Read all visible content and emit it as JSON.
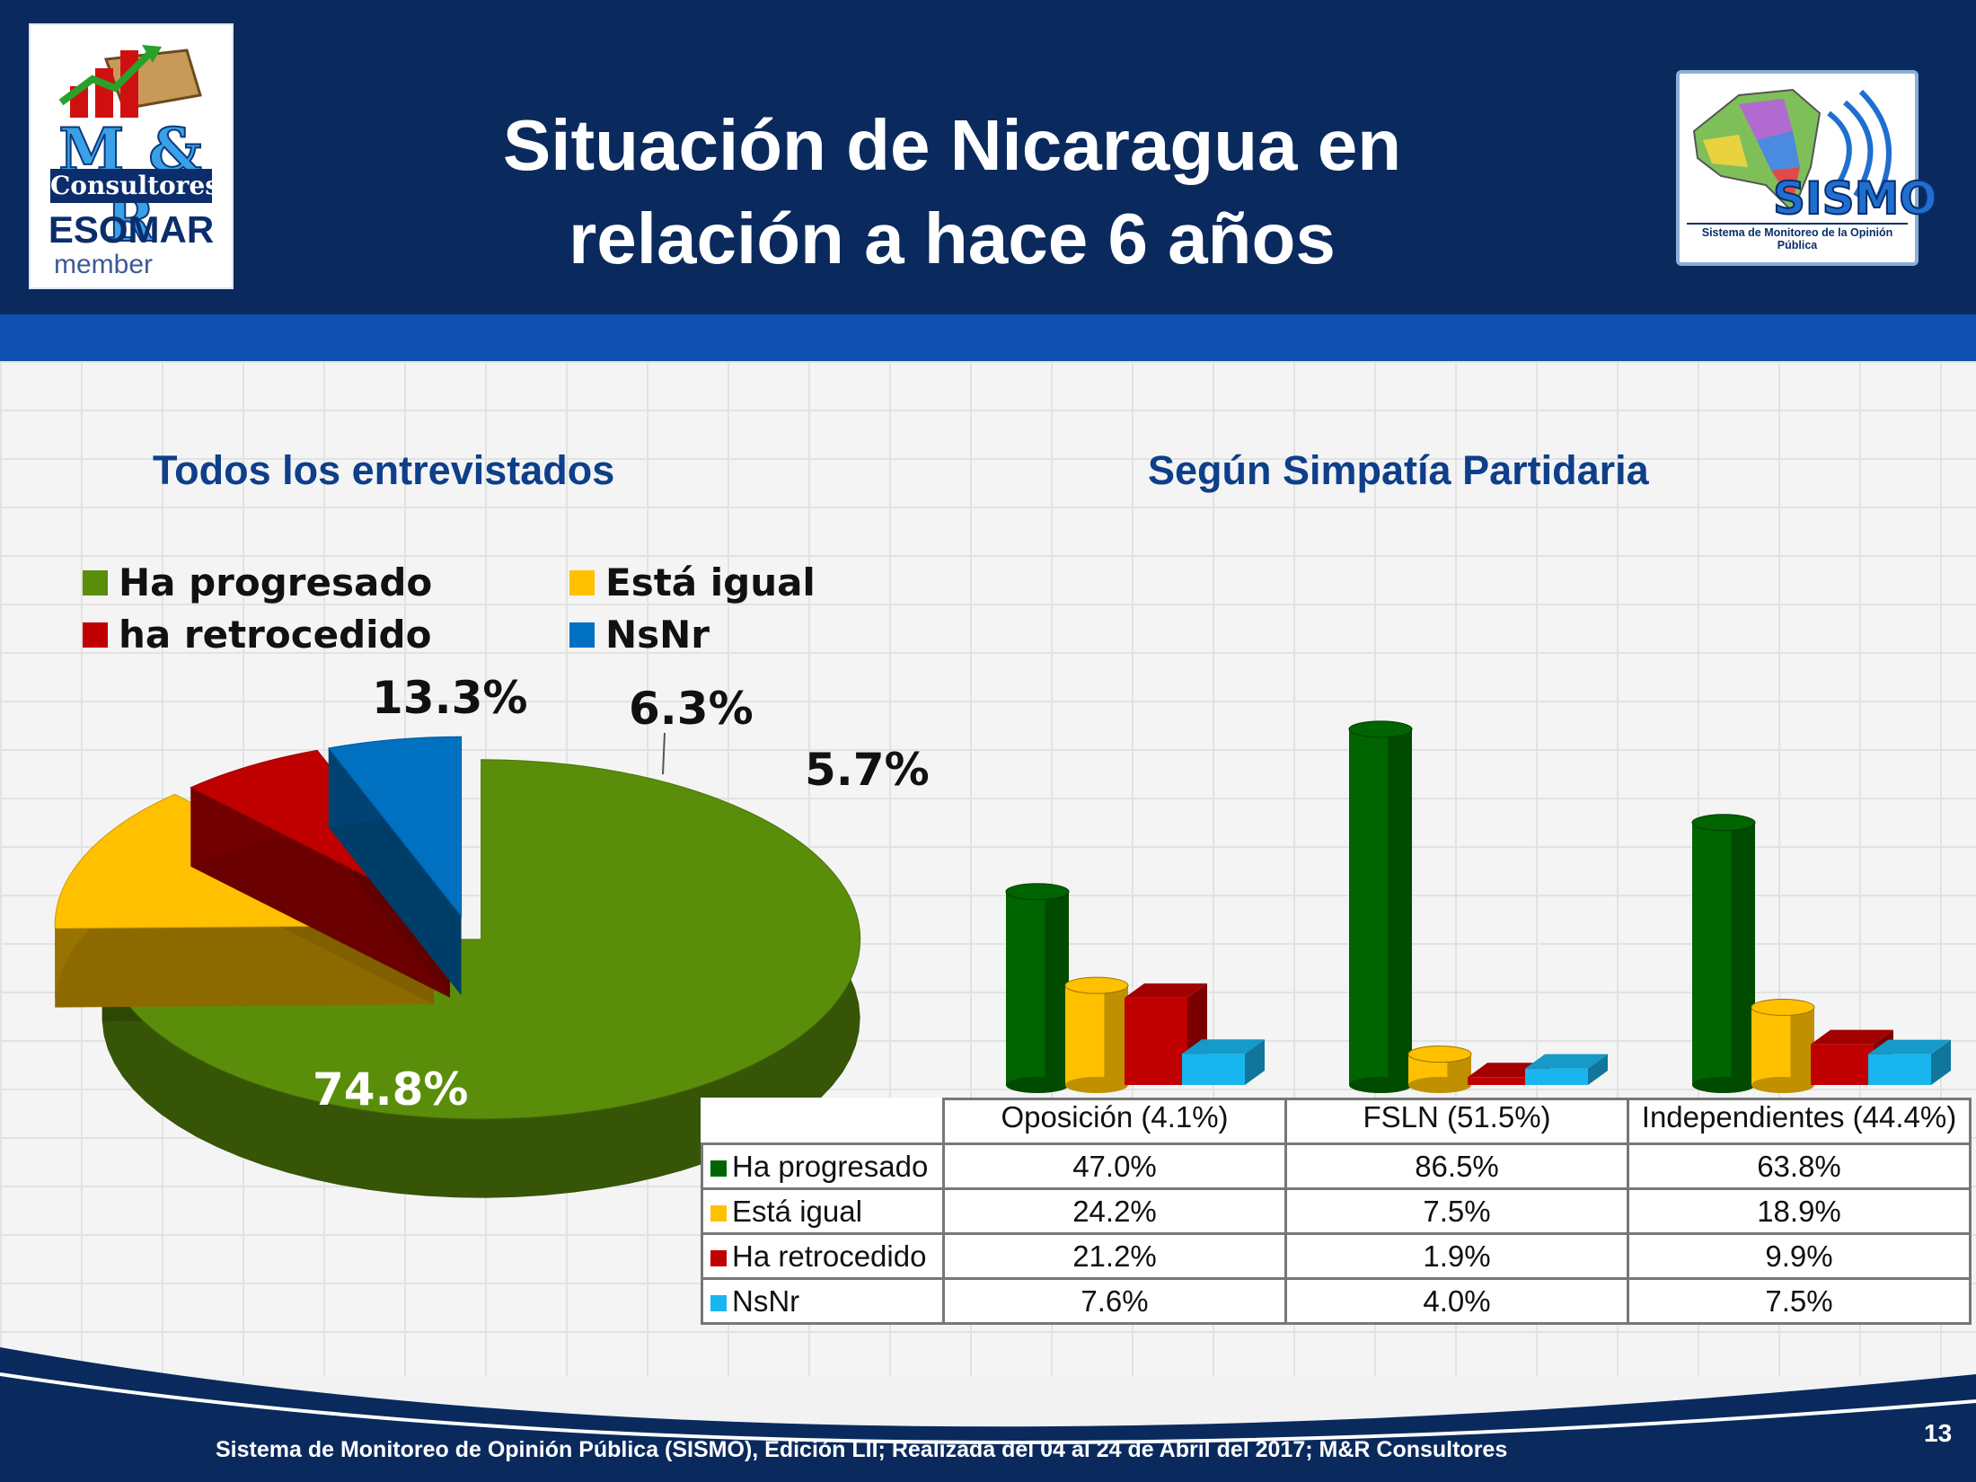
{
  "header": {
    "title_line1": "Situación de Nicaragua en",
    "title_line2": "relación a hace 6 años"
  },
  "logo_left": {
    "mr": "M & R",
    "consultores": "Consultores",
    "esomar": "ESOMAR",
    "member": "member"
  },
  "logo_right": {
    "name": "SISMO",
    "subtitle": "Sistema de Monitoreo de la Opinión Pública"
  },
  "footer": {
    "source": "Sistema de Monitoreo de Opinión Pública (SISMO), Edición LII; Realizada del 04 al 24 de Abril del 2017; M&R Consultores",
    "page": "13"
  },
  "colors": {
    "progresado": "#5a8e0a",
    "igual": "#ffc000",
    "retrocedido": "#c00000",
    "nsnr": "#0070c0",
    "bar_progresado": "#006400",
    "bar_nsnr": "#19b5ee",
    "header_bg": "#0a2a5e",
    "title_blue": "#0d3f8a"
  },
  "chart_data": [
    {
      "type": "pie",
      "title": "Todos los entrevistados",
      "legend": [
        "Ha progresado",
        "Está igual",
        "ha retrocedido",
        "NsNr"
      ],
      "categories": [
        "Ha progresado",
        "Está igual",
        "Ha retrocedido",
        "NsNr"
      ],
      "values": [
        74.8,
        13.3,
        6.3,
        5.7
      ],
      "labels": [
        "74.8%",
        "13.3%",
        "6.3%",
        "5.7%"
      ]
    },
    {
      "type": "bar",
      "title": "Según Simpatía Partidaria",
      "categories": [
        "Oposición (4.1%)",
        "FSLN (51.5%)",
        "Independientes (44.4%)"
      ],
      "ylim": [
        0,
        100
      ],
      "series": [
        {
          "name": "Ha progresado",
          "values": [
            47.0,
            86.5,
            63.8
          ],
          "labels": [
            "47.0%",
            "86.5%",
            "63.8%"
          ]
        },
        {
          "name": "Está igual",
          "values": [
            24.2,
            7.5,
            18.9
          ],
          "labels": [
            "24.2%",
            "7.5%",
            "18.9%"
          ]
        },
        {
          "name": "Ha retrocedido",
          "values": [
            21.2,
            1.9,
            9.9
          ],
          "labels": [
            "21.2%",
            "1.9%",
            "9.9%"
          ]
        },
        {
          "name": "NsNr",
          "values": [
            7.6,
            4.0,
            7.5
          ],
          "labels": [
            "7.6%",
            "4.0%",
            "7.5%"
          ]
        }
      ]
    }
  ]
}
